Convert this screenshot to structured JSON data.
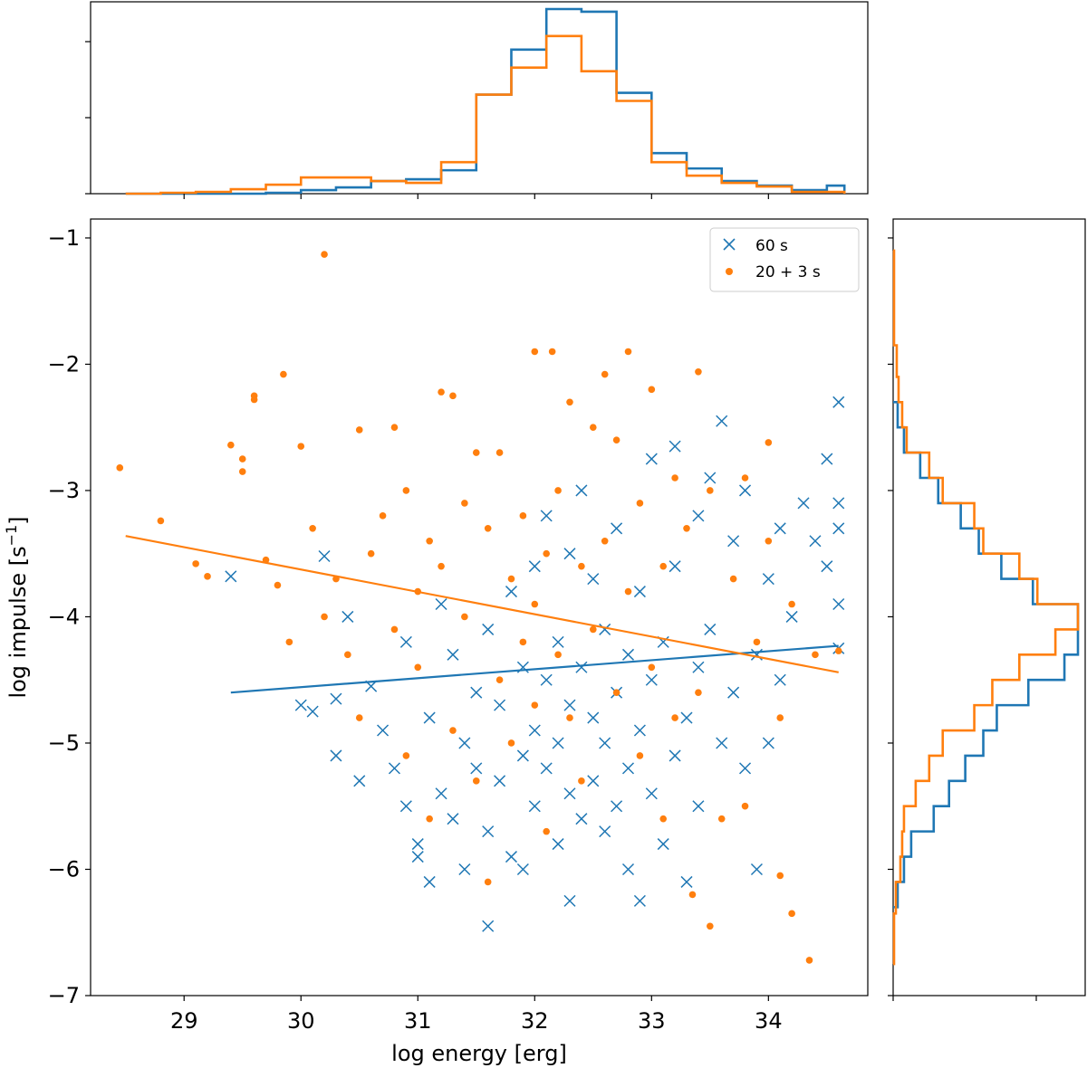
{
  "chart_data": [
    {
      "type": "scatter",
      "panel": "main",
      "xlabel": "log energy [erg]",
      "ylabel_main": "log impulse [s",
      "ylabel_exp": "−1",
      "ylabel_close": "]",
      "xlim": [
        28.2,
        34.85
      ],
      "ylim": [
        -7.0,
        -0.85
      ],
      "xticks": [
        29,
        30,
        31,
        32,
        33,
        34
      ],
      "yticks": [
        -1,
        -2,
        -3,
        -4,
        -5,
        -6,
        -7
      ],
      "ytick_labels": [
        "−1",
        "−2",
        "−3",
        "−4",
        "−5",
        "−6",
        "−7"
      ],
      "legend_position": "top-right",
      "series": [
        {
          "name": "60 s",
          "marker": "x",
          "color": "#1f77b4",
          "fit_line": [
            [
              29.4,
              -4.6
            ],
            [
              34.6,
              -4.23
            ]
          ],
          "points": [
            [
              29.4,
              -3.68
            ],
            [
              30.0,
              -4.7
            ],
            [
              30.1,
              -4.75
            ],
            [
              30.2,
              -3.52
            ],
            [
              30.3,
              -4.65
            ],
            [
              30.3,
              -5.1
            ],
            [
              30.4,
              -4.0
            ],
            [
              30.5,
              -5.3
            ],
            [
              30.6,
              -4.55
            ],
            [
              30.7,
              -4.9
            ],
            [
              30.8,
              -5.2
            ],
            [
              30.9,
              -5.5
            ],
            [
              30.9,
              -4.2
            ],
            [
              31.0,
              -5.8
            ],
            [
              31.0,
              -5.9
            ],
            [
              31.1,
              -6.1
            ],
            [
              31.1,
              -4.8
            ],
            [
              31.2,
              -5.4
            ],
            [
              31.2,
              -3.9
            ],
            [
              31.3,
              -5.6
            ],
            [
              31.3,
              -4.3
            ],
            [
              31.4,
              -5.0
            ],
            [
              31.4,
              -6.0
            ],
            [
              31.5,
              -5.2
            ],
            [
              31.5,
              -4.6
            ],
            [
              31.6,
              -6.45
            ],
            [
              31.6,
              -5.7
            ],
            [
              31.6,
              -4.1
            ],
            [
              31.7,
              -5.3
            ],
            [
              31.7,
              -4.7
            ],
            [
              31.8,
              -3.8
            ],
            [
              31.8,
              -5.9
            ],
            [
              31.9,
              -5.1
            ],
            [
              31.9,
              -4.4
            ],
            [
              31.9,
              -6.0
            ],
            [
              32.0,
              -5.5
            ],
            [
              32.0,
              -4.9
            ],
            [
              32.0,
              -3.6
            ],
            [
              32.1,
              -5.2
            ],
            [
              32.1,
              -4.5
            ],
            [
              32.1,
              -3.2
            ],
            [
              32.2,
              -5.8
            ],
            [
              32.2,
              -4.2
            ],
            [
              32.2,
              -5.0
            ],
            [
              32.3,
              -6.25
            ],
            [
              32.3,
              -5.4
            ],
            [
              32.3,
              -4.7
            ],
            [
              32.3,
              -3.5
            ],
            [
              32.4,
              -5.6
            ],
            [
              32.4,
              -4.4
            ],
            [
              32.4,
              -3.0
            ],
            [
              32.5,
              -5.3
            ],
            [
              32.5,
              -4.8
            ],
            [
              32.5,
              -3.7
            ],
            [
              32.6,
              -5.7
            ],
            [
              32.6,
              -4.1
            ],
            [
              32.6,
              -5.0
            ],
            [
              32.7,
              -5.5
            ],
            [
              32.7,
              -4.6
            ],
            [
              32.7,
              -3.3
            ],
            [
              32.8,
              -5.2
            ],
            [
              32.8,
              -6.0
            ],
            [
              32.8,
              -4.3
            ],
            [
              32.9,
              -6.25
            ],
            [
              32.9,
              -4.9
            ],
            [
              32.9,
              -3.8
            ],
            [
              33.0,
              -5.4
            ],
            [
              33.0,
              -4.5
            ],
            [
              33.0,
              -2.75
            ],
            [
              33.1,
              -5.8
            ],
            [
              33.1,
              -4.2
            ],
            [
              33.2,
              -5.1
            ],
            [
              33.2,
              -3.6
            ],
            [
              33.2,
              -2.65
            ],
            [
              33.3,
              -4.8
            ],
            [
              33.3,
              -6.1
            ],
            [
              33.4,
              -4.4
            ],
            [
              33.4,
              -5.5
            ],
            [
              33.4,
              -3.2
            ],
            [
              33.5,
              -4.1
            ],
            [
              33.5,
              -2.9
            ],
            [
              33.6,
              -2.45
            ],
            [
              33.6,
              -5.0
            ],
            [
              33.7,
              -4.6
            ],
            [
              33.7,
              -3.4
            ],
            [
              33.8,
              -5.2
            ],
            [
              33.8,
              -3.0
            ],
            [
              33.9,
              -4.3
            ],
            [
              33.9,
              -6.0
            ],
            [
              34.0,
              -3.7
            ],
            [
              34.0,
              -5.0
            ],
            [
              34.1,
              -4.5
            ],
            [
              34.1,
              -3.3
            ],
            [
              34.2,
              -4.0
            ],
            [
              34.3,
              -3.1
            ],
            [
              34.4,
              -3.4
            ],
            [
              34.5,
              -2.75
            ],
            [
              34.5,
              -3.6
            ],
            [
              34.6,
              -2.3
            ],
            [
              34.6,
              -3.9
            ],
            [
              34.6,
              -3.1
            ],
            [
              34.6,
              -4.25
            ],
            [
              34.6,
              -3.3
            ]
          ]
        },
        {
          "name": "20 + 3 s",
          "marker": "o",
          "color": "#ff7f0e",
          "fit_line": [
            [
              28.5,
              -3.36
            ],
            [
              34.6,
              -4.44
            ]
          ],
          "points": [
            [
              28.45,
              -2.82
            ],
            [
              28.8,
              -3.24
            ],
            [
              29.1,
              -3.58
            ],
            [
              29.2,
              -3.68
            ],
            [
              29.4,
              -2.64
            ],
            [
              29.5,
              -2.75
            ],
            [
              29.5,
              -2.85
            ],
            [
              29.6,
              -2.25
            ],
            [
              29.6,
              -2.28
            ],
            [
              29.7,
              -3.55
            ],
            [
              29.8,
              -3.75
            ],
            [
              29.85,
              -2.08
            ],
            [
              29.9,
              -4.2
            ],
            [
              30.0,
              -2.65
            ],
            [
              30.1,
              -3.3
            ],
            [
              30.2,
              -1.13
            ],
            [
              30.2,
              -4.0
            ],
            [
              30.3,
              -3.7
            ],
            [
              30.4,
              -4.3
            ],
            [
              30.5,
              -2.52
            ],
            [
              30.5,
              -4.8
            ],
            [
              30.6,
              -3.5
            ],
            [
              30.7,
              -3.2
            ],
            [
              30.8,
              -2.5
            ],
            [
              30.8,
              -4.1
            ],
            [
              30.9,
              -3.0
            ],
            [
              30.9,
              -5.1
            ],
            [
              31.0,
              -3.8
            ],
            [
              31.0,
              -4.4
            ],
            [
              31.1,
              -3.4
            ],
            [
              31.1,
              -5.6
            ],
            [
              31.2,
              -2.22
            ],
            [
              31.2,
              -3.6
            ],
            [
              31.3,
              -2.25
            ],
            [
              31.3,
              -4.9
            ],
            [
              31.4,
              -3.1
            ],
            [
              31.4,
              -4.0
            ],
            [
              31.5,
              -2.7
            ],
            [
              31.5,
              -5.3
            ],
            [
              31.6,
              -3.3
            ],
            [
              31.6,
              -6.1
            ],
            [
              31.7,
              -2.7
            ],
            [
              31.7,
              -4.5
            ],
            [
              31.8,
              -3.7
            ],
            [
              31.8,
              -5.0
            ],
            [
              31.9,
              -3.2
            ],
            [
              31.9,
              -4.2
            ],
            [
              32.0,
              -1.9
            ],
            [
              32.0,
              -3.9
            ],
            [
              32.0,
              -4.7
            ],
            [
              32.1,
              -3.5
            ],
            [
              32.1,
              -5.7
            ],
            [
              32.15,
              -1.9
            ],
            [
              32.2,
              -4.3
            ],
            [
              32.2,
              -3.0
            ],
            [
              32.3,
              -2.3
            ],
            [
              32.3,
              -4.8
            ],
            [
              32.4,
              -3.6
            ],
            [
              32.4,
              -5.3
            ],
            [
              32.5,
              -2.5
            ],
            [
              32.5,
              -4.1
            ],
            [
              32.6,
              -2.08
            ],
            [
              32.6,
              -3.4
            ],
            [
              32.7,
              -4.6
            ],
            [
              32.7,
              -2.6
            ],
            [
              32.8,
              -1.9
            ],
            [
              32.8,
              -3.8
            ],
            [
              32.9,
              -5.1
            ],
            [
              32.9,
              -3.1
            ],
            [
              33.0,
              -4.4
            ],
            [
              33.0,
              -2.2
            ],
            [
              33.1,
              -3.6
            ],
            [
              33.1,
              -5.6
            ],
            [
              33.2,
              -2.9
            ],
            [
              33.2,
              -4.8
            ],
            [
              33.3,
              -3.3
            ],
            [
              33.35,
              -6.2
            ],
            [
              33.4,
              -2.06
            ],
            [
              33.4,
              -4.6
            ],
            [
              33.5,
              -3.0
            ],
            [
              33.5,
              -6.45
            ],
            [
              33.6,
              -5.6
            ],
            [
              33.7,
              -3.7
            ],
            [
              33.8,
              -2.9
            ],
            [
              33.8,
              -5.5
            ],
            [
              33.9,
              -4.2
            ],
            [
              34.0,
              -3.4
            ],
            [
              34.0,
              -2.62
            ],
            [
              34.1,
              -4.8
            ],
            [
              34.1,
              -6.05
            ],
            [
              34.2,
              -3.9
            ],
            [
              34.2,
              -6.35
            ],
            [
              34.35,
              -6.72
            ],
            [
              34.4,
              -4.3
            ],
            [
              34.6,
              -4.27
            ]
          ]
        }
      ]
    },
    {
      "type": "histogram",
      "panel": "top",
      "orientation": "vertical",
      "xlim": [
        28.2,
        34.85
      ],
      "series": [
        {
          "name": "60 s",
          "color": "#1f77b4",
          "edges": [
            28.5,
            28.8,
            29.1,
            29.4,
            29.7,
            30.0,
            30.3,
            30.6,
            30.9,
            31.2,
            31.5,
            31.8,
            32.1,
            32.4,
            32.7,
            33.0,
            33.3,
            33.6,
            33.9,
            34.2,
            34.5,
            34.65
          ],
          "counts": [
            0,
            0,
            0,
            0,
            1,
            4,
            7,
            14,
            16,
            26,
            110,
            160,
            205,
            202,
            112,
            45,
            28,
            14,
            9,
            4,
            9
          ]
        },
        {
          "name": "20 + 3 s",
          "color": "#ff7f0e",
          "edges": [
            28.5,
            28.8,
            29.1,
            29.4,
            29.7,
            30.0,
            30.3,
            30.6,
            30.9,
            31.2,
            31.5,
            31.8,
            32.1,
            32.4,
            32.7,
            33.0,
            33.3,
            33.6,
            33.9,
            34.2,
            34.5,
            34.65
          ],
          "counts": [
            0,
            1,
            2,
            5,
            10,
            18,
            18,
            14,
            12,
            35,
            110,
            140,
            175,
            136,
            103,
            35,
            20,
            12,
            8,
            2,
            2
          ]
        }
      ]
    },
    {
      "type": "histogram",
      "panel": "right",
      "orientation": "horizontal",
      "ylim": [
        -7.0,
        -0.85
      ],
      "series": [
        {
          "name": "60 s",
          "color": "#1f77b4",
          "edges": [
            -6.3,
            -6.1,
            -5.9,
            -5.7,
            -5.5,
            -5.3,
            -5.1,
            -4.9,
            -4.7,
            -4.5,
            -4.3,
            -4.1,
            -3.9,
            -3.7,
            -3.5,
            -3.3,
            -3.1,
            -2.9,
            -2.7,
            -2.5,
            -2.3
          ],
          "counts": [
            5,
            12,
            20,
            45,
            62,
            80,
            100,
            115,
            150,
            190,
            205,
            205,
            155,
            120,
            95,
            75,
            50,
            30,
            12,
            5
          ]
        },
        {
          "name": "20 + 3 s",
          "color": "#ff7f0e",
          "edges": [
            -6.75,
            -6.35,
            -6.1,
            -5.9,
            -5.7,
            -5.5,
            -5.3,
            -5.1,
            -4.9,
            -4.7,
            -4.5,
            -4.3,
            -4.1,
            -3.9,
            -3.7,
            -3.5,
            -3.3,
            -3.1,
            -2.9,
            -2.7,
            -2.5,
            -2.3,
            -2.1,
            -1.85,
            -1.1
          ],
          "counts": [
            1,
            3,
            8,
            10,
            12,
            25,
            40,
            55,
            90,
            110,
            140,
            180,
            205,
            160,
            140,
            100,
            90,
            55,
            40,
            15,
            10,
            6,
            4,
            1
          ]
        }
      ]
    }
  ]
}
